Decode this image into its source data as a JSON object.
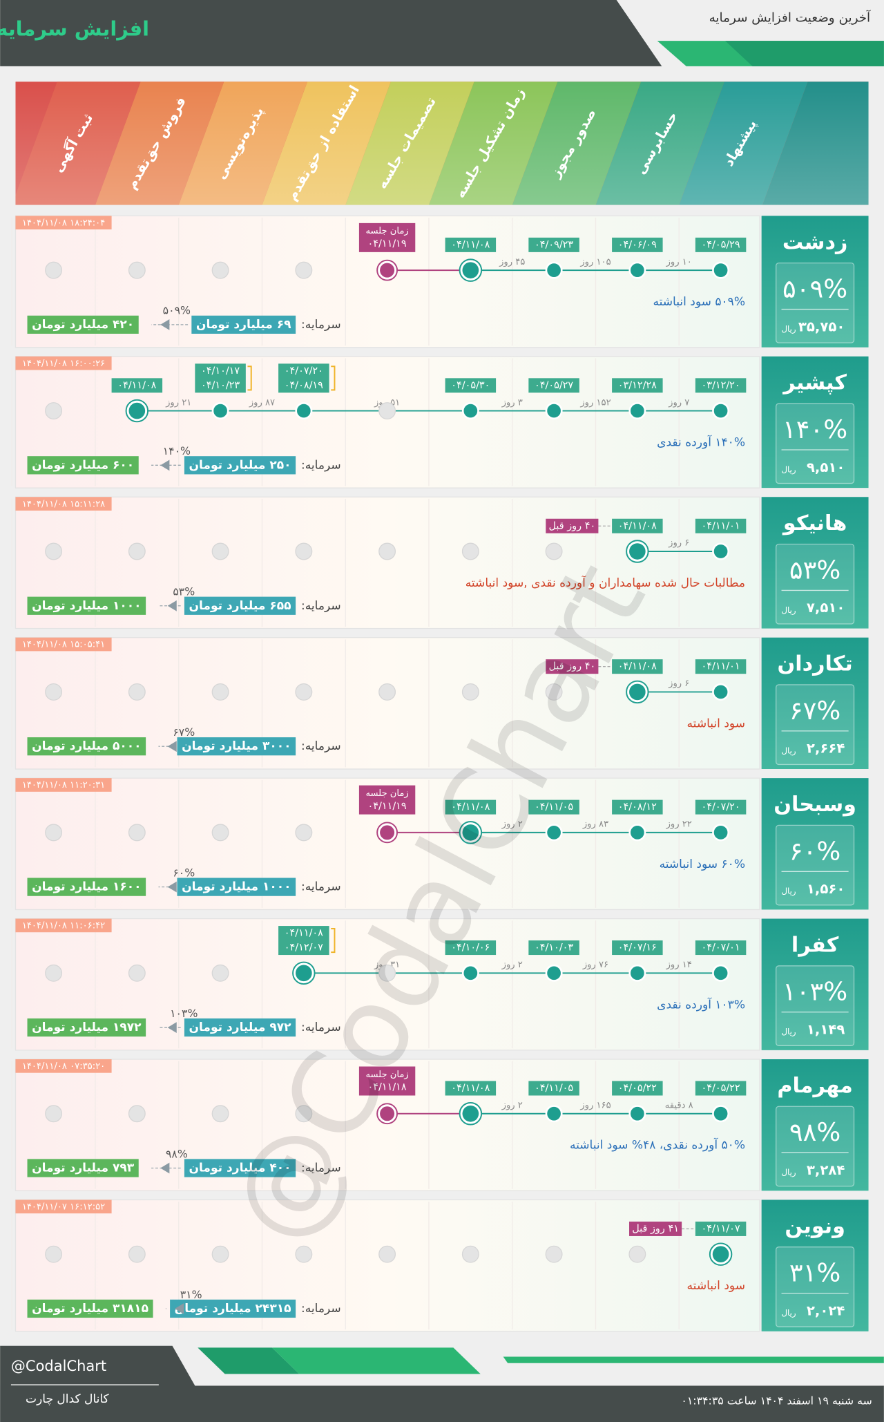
{
  "header": {
    "title": "افزایش سرمایه",
    "subtitle": "آخرین وضعیت افزایش سرمایه"
  },
  "stages": [
    "پیشنهاد",
    "حسابرسی",
    "صدور مجوز",
    "زمان تشکیل جلسه",
    "تصمیمات جلسه",
    "استفاده از حق‌تقدم",
    "پذیره‌نویسی",
    "فروش حق‌تقدم",
    "ثبت آگهی"
  ],
  "labels": {
    "capital": "سرمایه:",
    "currency": "ریال",
    "meeting": "زمان جلسه"
  },
  "rows": [
    {
      "name": "زدشت",
      "percent": "۵۰۹%",
      "price": "۳۵,۷۵۰",
      "timestamp": "۱۴۰۴/۱۱/۰۸ ۱۸:۲۴:۰۴",
      "steps": [
        {
          "dates": [
            "۰۴/۰۵/۲۹"
          ]
        },
        {
          "dates": [
            "۰۴/۰۶/۰۹"
          ]
        },
        {
          "dates": [
            "۰۴/۰۹/۲۳"
          ]
        },
        {
          "dates": [
            "۰۴/۱۱/۰۸"
          ]
        },
        {
          "dates": [
            "۰۴/۱۱/۱۹"
          ],
          "meeting": true
        },
        null,
        null,
        null,
        null
      ],
      "gaps": [
        "۱۰ روز",
        "۱۰۵ روز",
        "۴۵ روز"
      ],
      "description": "۵۰۹% سود انباشته",
      "desc_color": "#2a6fb8",
      "capital": "۶۹ میلیارد تومان",
      "increase": "۵۰۹%",
      "new_capital": "۴۲۰ میلیارد تومان"
    },
    {
      "name": "کپشیر",
      "percent": "۱۴۰%",
      "price": "۹,۵۱۰",
      "timestamp": "۱۴۰۴/۱۱/۰۸ ۱۶:۰۰:۲۶",
      "steps": [
        {
          "dates": [
            "۰۳/۱۲/۲۰"
          ]
        },
        {
          "dates": [
            "۰۳/۱۲/۲۸"
          ]
        },
        {
          "dates": [
            "۰۴/۰۵/۲۷"
          ]
        },
        {
          "dates": [
            "۰۴/۰۵/۳۰"
          ]
        },
        null,
        {
          "dates": [
            "۰۴/۰۷/۲۰",
            "۰۴/۰۸/۱۹"
          ]
        },
        {
          "dates": [
            "۰۴/۱۰/۱۷",
            "۰۴/۱۰/۲۳"
          ]
        },
        {
          "dates": [
            "۰۴/۱۱/۰۸"
          ]
        },
        null
      ],
      "gaps": [
        "۷ روز",
        "۱۵۲ روز",
        "۳ روز",
        "۵۱ روز",
        "۸۷ روز",
        "۲۱ روز"
      ],
      "description": "۱۴۰% آورده نقدی",
      "desc_color": "#2a6fb8",
      "capital": "۲۵۰ میلیارد تومان",
      "increase": "۱۴۰%",
      "new_capital": "۶۰۰ میلیارد تومان"
    },
    {
      "name": "هانیکو",
      "percent": "۵۳%",
      "price": "۷,۵۱۰",
      "timestamp": "۱۴۰۴/۱۱/۰۸ ۱۵:۱۱:۲۸",
      "steps": [
        {
          "dates": [
            "۰۴/۱۱/۰۱"
          ]
        },
        {
          "dates": [
            "۰۴/۱۱/۰۸"
          ]
        },
        null,
        null,
        null,
        null,
        null,
        null,
        null
      ],
      "gaps": [
        "۶ روز"
      ],
      "badge": "۴۰ روز قبل",
      "description": "مطالبات حال شده سهامداران و آورده نقدی ,سود انباشته",
      "desc_color": "#d2452a",
      "capital": "۶۵۵ میلیارد تومان",
      "increase": "۵۳%",
      "new_capital": "۱۰۰۰ میلیارد تومان"
    },
    {
      "name": "تکاردان",
      "percent": "۶۷%",
      "price": "۲,۶۶۴",
      "timestamp": "۱۴۰۴/۱۱/۰۸ ۱۵:۰۵:۴۱",
      "steps": [
        {
          "dates": [
            "۰۴/۱۱/۰۱"
          ]
        },
        {
          "dates": [
            "۰۴/۱۱/۰۸"
          ]
        },
        null,
        null,
        null,
        null,
        null,
        null,
        null
      ],
      "gaps": [
        "۶ روز"
      ],
      "badge": "۴۰ روز قبل",
      "description": "سود انباشته",
      "desc_color": "#d2452a",
      "capital": "۳۰۰۰ میلیارد تومان",
      "increase": "۶۷%",
      "new_capital": "۵۰۰۰ میلیارد تومان"
    },
    {
      "name": "وسبحان",
      "percent": "۶۰%",
      "price": "۱,۵۶۰",
      "timestamp": "۱۴۰۴/۱۱/۰۸ ۱۱:۲۰:۳۱",
      "steps": [
        {
          "dates": [
            "۰۴/۰۷/۲۰"
          ]
        },
        {
          "dates": [
            "۰۴/۰۸/۱۲"
          ]
        },
        {
          "dates": [
            "۰۴/۱۱/۰۵"
          ]
        },
        {
          "dates": [
            "۰۴/۱۱/۰۸"
          ]
        },
        {
          "dates": [
            "۰۴/۱۱/۱۹"
          ],
          "meeting": true
        },
        null,
        null,
        null,
        null
      ],
      "gaps": [
        "۲۲ روز",
        "۸۳ روز",
        "۲ روز"
      ],
      "description": "۶۰% سود انباشته",
      "desc_color": "#2a6fb8",
      "capital": "۱۰۰۰ میلیارد تومان",
      "increase": "۶۰%",
      "new_capital": "۱۶۰۰ میلیارد تومان"
    },
    {
      "name": "کفرا",
      "percent": "۱۰۳%",
      "price": "۱,۱۴۹",
      "timestamp": "۱۴۰۴/۱۱/۰۸ ۱۱:۰۶:۴۲",
      "steps": [
        {
          "dates": [
            "۰۴/۰۷/۰۱"
          ]
        },
        {
          "dates": [
            "۰۴/۰۷/۱۶"
          ]
        },
        {
          "dates": [
            "۰۴/۱۰/۰۳"
          ]
        },
        {
          "dates": [
            "۰۴/۱۰/۰۶"
          ]
        },
        null,
        {
          "dates": [
            "۰۴/۱۱/۰۸",
            "۰۴/۱۲/۰۷"
          ]
        },
        null,
        null,
        null
      ],
      "gaps": [
        "۱۴ روز",
        "۷۶ روز",
        "۲ روز",
        "۳۱ روز"
      ],
      "description": "۱۰۳% آورده نقدی",
      "desc_color": "#2a6fb8",
      "capital": "۹۷۲ میلیارد تومان",
      "increase": "۱۰۳%",
      "new_capital": "۱۹۷۲ میلیارد تومان"
    },
    {
      "name": "مهرمام",
      "percent": "۹۸%",
      "price": "۳,۲۸۴",
      "timestamp": "۱۴۰۴/۱۱/۰۸ ۰۷:۳۵:۲۰",
      "steps": [
        {
          "dates": [
            "۰۴/۰۵/۲۲"
          ]
        },
        {
          "dates": [
            "۰۴/۰۵/۲۲"
          ]
        },
        {
          "dates": [
            "۰۴/۱۱/۰۵"
          ]
        },
        {
          "dates": [
            "۰۴/۱۱/۰۸"
          ]
        },
        {
          "dates": [
            "۰۴/۱۱/۱۸"
          ],
          "meeting": true
        },
        null,
        null,
        null,
        null
      ],
      "gaps": [
        "۸ دقیقه",
        "۱۶۵ روز",
        "۲ روز"
      ],
      "description": "۵۰% آورده نقدی، ۴۸% سود انباشته",
      "desc_color": "#2a6fb8",
      "capital": "۴۰۰ میلیارد تومان",
      "increase": "۹۸%",
      "new_capital": "۷۹۳ میلیارد تومان"
    },
    {
      "name": "ونوین",
      "percent": "۳۱%",
      "price": "۲,۰۲۴",
      "timestamp": "۱۴۰۴/۱۱/۰۷ ۱۶:۱۲:۵۲",
      "steps": [
        {
          "dates": [
            "۰۴/۱۱/۰۷"
          ]
        },
        null,
        null,
        null,
        null,
        null,
        null,
        null,
        null
      ],
      "gaps": [],
      "badge": "۴۱ روز قبل",
      "description": "سود انباشته",
      "desc_color": "#d2452a",
      "capital": "۲۴۳۱۵ میلیارد تومان",
      "increase": "۳۱%",
      "new_capital": "۳۱۸۱۵ میلیارد تومان"
    }
  ],
  "watermark": "@CodalChart",
  "footer": {
    "handle": "@CodalChart",
    "channel": "کانال کدال چارت",
    "date": "سه شنبه ۱۹ اسفند ۱۴۰۴ ساعت ۰۱:۳۴:۳۵"
  }
}
